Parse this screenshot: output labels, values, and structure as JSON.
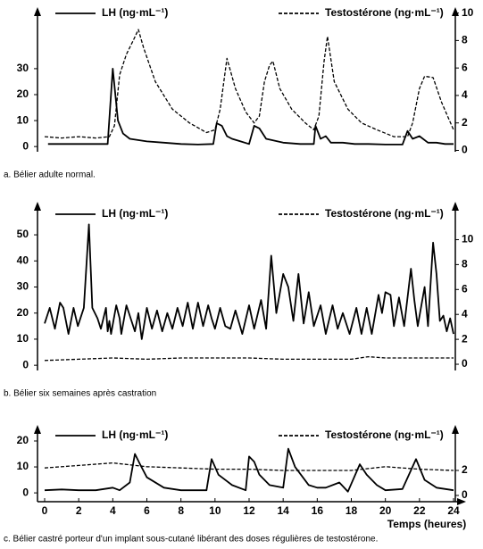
{
  "chart_data": [
    {
      "type": "line",
      "caption": "a. Bélier adulte normal.",
      "xlim": [
        0,
        24
      ],
      "ylim": [
        -2,
        53
      ],
      "yticks": [
        0,
        10,
        20,
        30
      ],
      "y2lim": [
        -0.1,
        10.3
      ],
      "y2ticks": [
        0,
        2,
        4,
        6,
        8,
        10
      ],
      "series": [
        {
          "name": "LH (ng·mL⁻¹)",
          "color": "#000000",
          "linestyle": "solid",
          "x": [
            0.2,
            1,
            2,
            3,
            3.7,
            4.0,
            4.3,
            4.6,
            5,
            6,
            7,
            8,
            9,
            9.9,
            10.1,
            10.4,
            10.7,
            11,
            11.5,
            12,
            12.3,
            12.6,
            13,
            14,
            15,
            15.8,
            15.9,
            16.2,
            16.5,
            16.8,
            17.5,
            18.2,
            19,
            20,
            21,
            21.3,
            21.6,
            22,
            22.5,
            23,
            23.5,
            24
          ],
          "values": [
            1,
            1,
            1,
            1,
            1,
            30,
            10,
            5,
            3,
            2,
            1.5,
            1,
            0.8,
            1,
            9,
            8,
            4,
            3,
            2,
            1,
            8,
            7,
            3,
            1.5,
            1,
            1,
            8,
            3,
            4,
            1.5,
            1.5,
            1,
            1,
            0.8,
            0.8,
            6,
            3,
            4,
            1.5,
            1.5,
            1,
            1
          ]
        },
        {
          "name": "Testostérone (ng·mL⁻¹)",
          "color": "#000000",
          "linestyle": "dashed",
          "axis": "y2",
          "x": [
            0,
            1,
            2,
            3,
            3.8,
            4.1,
            4.4,
            4.8,
            5.2,
            5.5,
            5.8,
            6.5,
            7.5,
            8.5,
            9.5,
            10,
            10.3,
            10.7,
            11.2,
            11.8,
            12.3,
            12.6,
            12.9,
            13.2,
            13.4,
            13.8,
            14.5,
            15.3,
            15.8,
            16.1,
            16.4,
            16.6,
            17,
            17.8,
            18.6,
            19.5,
            20.5,
            21.3,
            21.6,
            22,
            22.3,
            22.8,
            23.3,
            24
          ],
          "values": [
            1,
            0.9,
            1,
            0.9,
            1,
            1.8,
            5.5,
            7,
            8,
            8.8,
            7.5,
            5,
            3,
            2,
            1.3,
            1.5,
            3,
            6.7,
            4.5,
            2.8,
            2,
            2.5,
            5,
            6.2,
            6.5,
            4.5,
            3,
            2,
            1.5,
            2.5,
            6.5,
            8.3,
            5,
            3,
            2,
            1.5,
            1,
            1,
            2,
            4.5,
            5.4,
            5.3,
            3.5,
            1.5
          ]
        }
      ]
    },
    {
      "type": "line",
      "caption": "b. Bélier six semaines après castration",
      "xlim": [
        0,
        24
      ],
      "ylim": [
        -2,
        62
      ],
      "yticks": [
        0,
        10,
        20,
        30,
        40,
        50
      ],
      "y2lim": [
        -0.5,
        12.9
      ],
      "y2ticks": [
        0,
        2,
        4,
        6,
        8,
        10
      ],
      "series": [
        {
          "name": "LH (ng·mL⁻¹)",
          "color": "#000000",
          "linestyle": "solid",
          "x": [
            0,
            0.3,
            0.6,
            0.9,
            1.1,
            1.4,
            1.7,
            1.95,
            2.3,
            2.6,
            2.8,
            3.1,
            3.3,
            3.6,
            3.7,
            3.8,
            3.9,
            4.2,
            4.4,
            4.5,
            4.8,
            5.1,
            5.3,
            5.5,
            5.7,
            6.0,
            6.3,
            6.6,
            6.9,
            7.2,
            7.5,
            7.8,
            8.1,
            8.4,
            8.7,
            9.0,
            9.3,
            9.6,
            9.8,
            10.0,
            10.3,
            10.6,
            10.9,
            11.2,
            11.6,
            12.0,
            12.3,
            12.7,
            13.0,
            13.3,
            13.6,
            14.0,
            14.3,
            14.6,
            14.9,
            15.2,
            15.5,
            15.8,
            16.2,
            16.5,
            16.9,
            17.2,
            17.5,
            17.9,
            18.3,
            18.6,
            18.9,
            19.2,
            19.6,
            19.8,
            20.0,
            20.3,
            20.5,
            20.8,
            21.1,
            21.5,
            21.7,
            21.9,
            22.3,
            22.5,
            22.8,
            23.0,
            23.2,
            23.4,
            23.6,
            23.8,
            24
          ],
          "values": [
            16,
            22,
            14,
            24,
            22,
            12,
            22,
            15,
            22,
            54,
            22,
            18,
            14,
            22,
            13,
            17,
            12,
            23,
            18,
            12,
            23,
            17,
            13,
            20,
            10,
            22,
            14,
            21,
            13,
            20,
            14,
            22,
            15,
            24,
            14,
            24,
            15,
            23,
            18,
            14,
            22,
            15,
            14,
            21,
            12,
            23,
            14,
            25,
            14,
            42,
            20,
            35,
            30,
            17,
            35,
            16,
            28,
            15,
            23,
            12,
            23,
            14,
            20,
            12,
            22,
            12,
            22,
            12,
            27,
            20,
            28,
            27,
            15,
            26,
            15,
            37,
            25,
            15,
            30,
            15,
            47,
            35,
            17,
            19,
            13,
            18,
            12
          ]
        },
        {
          "name": "Testostérone (ng·mL⁻¹)",
          "color": "#000000",
          "linestyle": "dashed",
          "axis": "y2",
          "x": [
            0,
            2,
            4,
            6,
            8,
            10,
            12,
            14,
            16,
            18,
            19,
            20,
            22,
            24
          ],
          "values": [
            0.3,
            0.4,
            0.5,
            0.4,
            0.5,
            0.5,
            0.5,
            0.4,
            0.4,
            0.4,
            0.6,
            0.5,
            0.5,
            0.5
          ]
        }
      ]
    },
    {
      "type": "line",
      "caption": "c. Bélier castré porteur d'un implant sous-cutané libérant des doses régulières de testostérone.",
      "xlabel": "Temps (heures)",
      "xlim": [
        0,
        24
      ],
      "xticks": [
        0,
        2,
        4,
        6,
        8,
        10,
        12,
        14,
        16,
        18,
        20,
        22,
        24
      ],
      "ylim": [
        -3.4,
        25.5
      ],
      "yticks": [
        0,
        10,
        20
      ],
      "y2lim": [
        -0.5,
        5.5
      ],
      "y2ticks": [
        0,
        2
      ],
      "series": [
        {
          "name": "LH (ng·mL⁻¹)",
          "color": "#000000",
          "linestyle": "solid",
          "x": [
            0,
            1,
            2,
            3,
            4,
            4.4,
            5,
            5.3,
            5.6,
            6,
            7,
            8,
            9.5,
            9.8,
            10.2,
            11,
            11.8,
            12,
            12.3,
            12.6,
            13.2,
            14,
            14.3,
            14.7,
            15.5,
            16,
            16.5,
            17.3,
            17.8,
            18.5,
            18.9,
            19.5,
            20,
            21,
            21.8,
            22.3,
            23,
            24
          ],
          "values": [
            1,
            1.3,
            1,
            1,
            2,
            1,
            4,
            15,
            11,
            6,
            2,
            1,
            1,
            13,
            7,
            3,
            1,
            14,
            12,
            7,
            3,
            2,
            17,
            10,
            3,
            2,
            2,
            4,
            0.5,
            11,
            7,
            3,
            1,
            1.5,
            13,
            5,
            2,
            1
          ]
        },
        {
          "name": "Testostérone (ng·mL⁻¹)",
          "color": "#000000",
          "linestyle": "dashed",
          "axis": "y2",
          "x": [
            0,
            2,
            4,
            6,
            8,
            10,
            12,
            14,
            16,
            18,
            20,
            22,
            24
          ],
          "values": [
            2.2,
            2.4,
            2.6,
            2.3,
            2.2,
            2.1,
            2.1,
            2,
            2,
            2,
            2.3,
            2.1,
            2
          ]
        }
      ]
    }
  ]
}
